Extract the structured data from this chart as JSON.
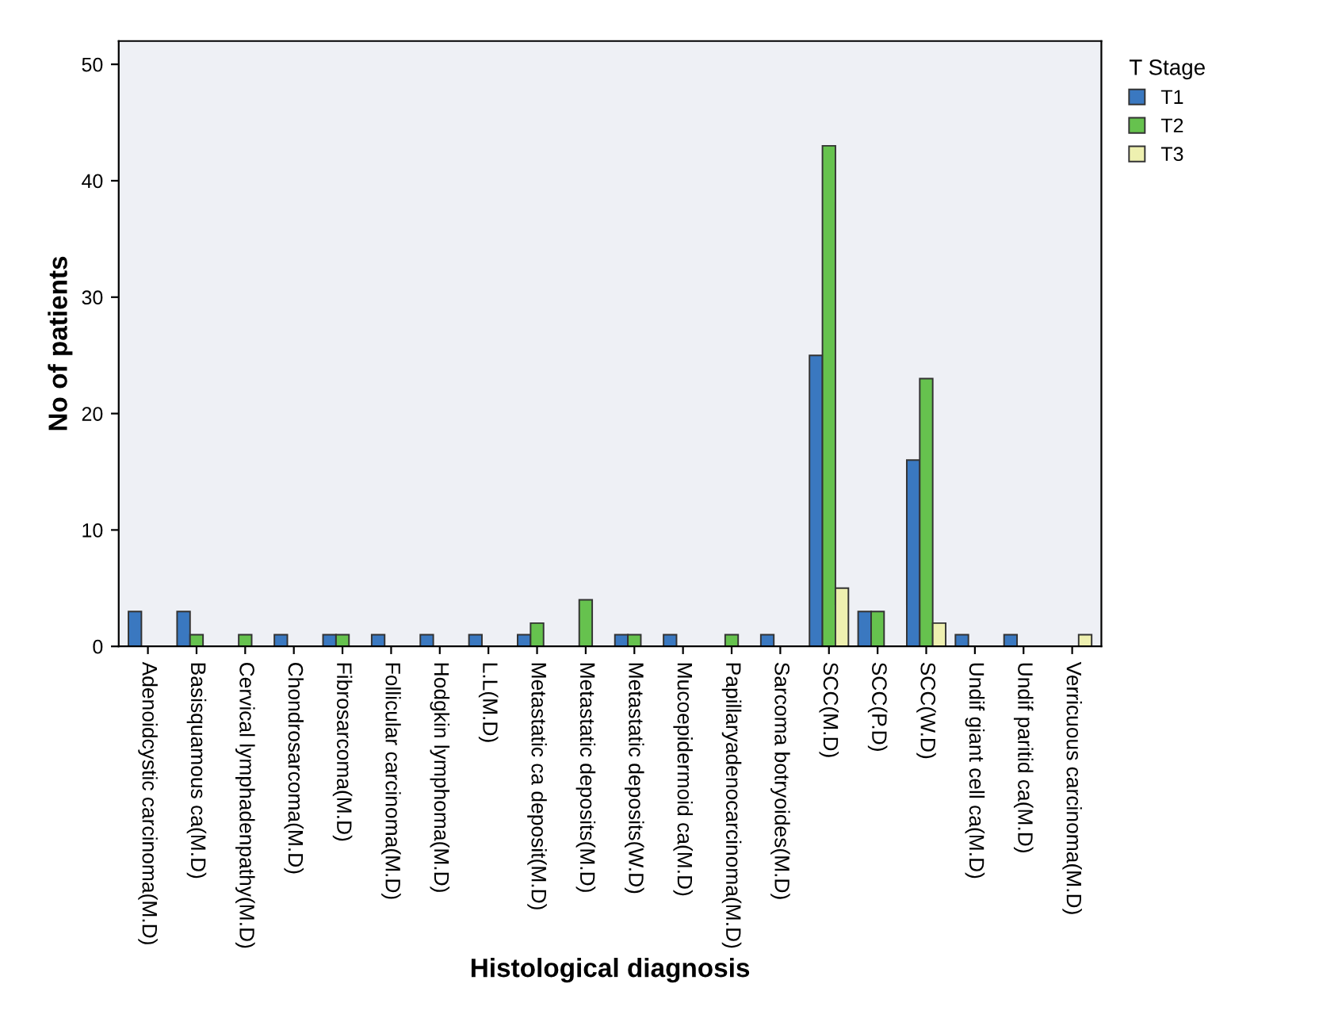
{
  "chart_data": {
    "type": "bar",
    "xlabel": "Histological diagnosis",
    "ylabel": "No of patients",
    "legend_title": "T Stage",
    "categories": [
      "Adenoidcystic carcinoma(M.D)",
      "Basisquamous ca(M.D)",
      "Cervical lymphadenpathy(M.D)",
      "Chondrosarcoma(M.D)",
      "Fibrosarcoma(M.D)",
      "Follicular carcinoma(M.D)",
      "Hodgkin lymphoma(M.D)",
      "L.L(M.D)",
      "Metastatic ca deposit(M.D)",
      "Metastatic deposits(M.D)",
      "Metastatic deposits(W.D)",
      "Mucoepidermoid ca(M.D)",
      "Papillaryadenocarcinoma(M.D)",
      "Sarcoma botryoides(M.D)",
      "SCC(M.D)",
      "SCC(P.D)",
      "SCC(W.D)",
      "Undif giant cell ca(M.D)",
      "Undif paritid ca(M.D)",
      "Verricuous carcinoma(M.D)"
    ],
    "series": [
      {
        "name": "T1",
        "color": "#3a78c0",
        "values": [
          3,
          3,
          null,
          1,
          1,
          1,
          1,
          1,
          1,
          null,
          1,
          1,
          null,
          1,
          25,
          3,
          16,
          1,
          1,
          null
        ]
      },
      {
        "name": "T2",
        "color": "#66c24e",
        "values": [
          null,
          1,
          1,
          null,
          1,
          null,
          null,
          null,
          2,
          4,
          1,
          null,
          1,
          null,
          43,
          3,
          23,
          null,
          null,
          null
        ]
      },
      {
        "name": "T3",
        "color": "#eef0b0",
        "values": [
          null,
          null,
          null,
          null,
          null,
          null,
          null,
          null,
          null,
          null,
          null,
          null,
          null,
          null,
          5,
          null,
          2,
          null,
          null,
          1
        ]
      }
    ],
    "ylim": [
      0,
      52
    ],
    "yticks": [
      0,
      10,
      20,
      30,
      40,
      50
    ],
    "grid": false,
    "legend": "top right"
  }
}
